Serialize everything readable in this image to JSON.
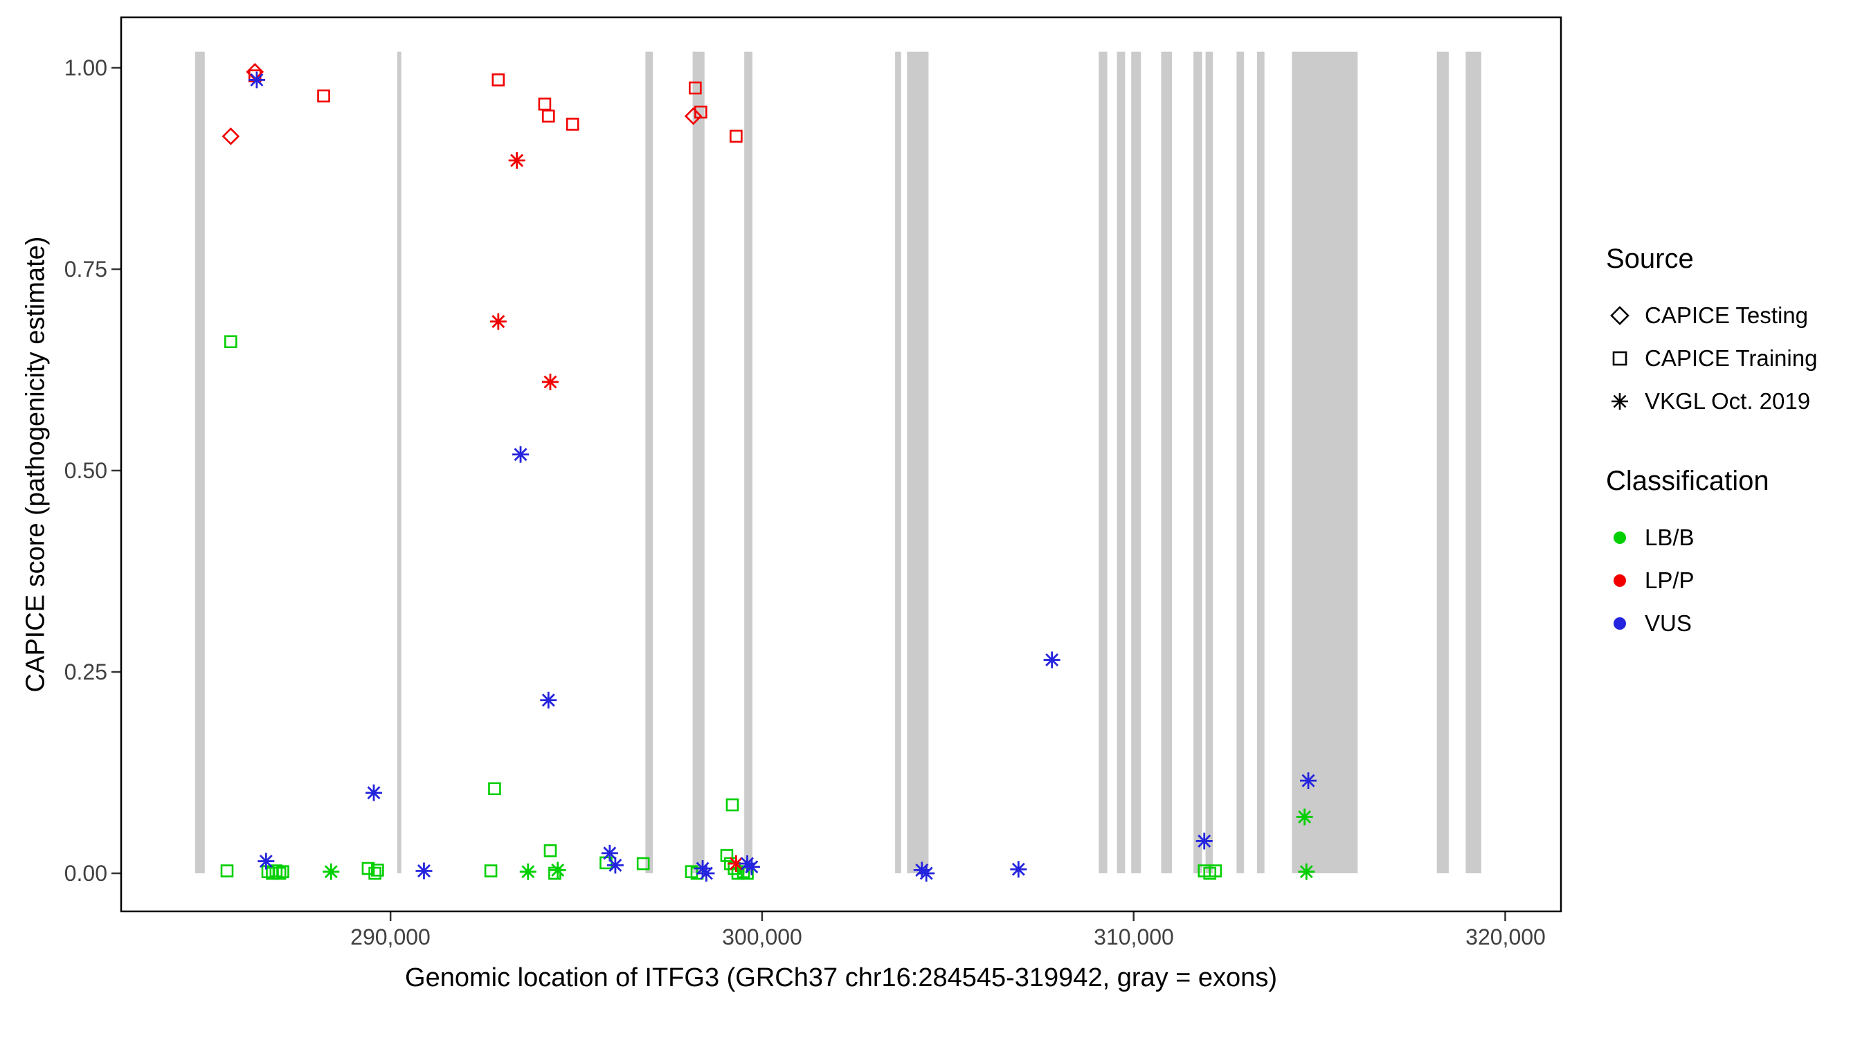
{
  "figure": {
    "background": "#ffffff",
    "panel_border_color": "#000000",
    "tick_color": "#333333",
    "tick_label_color": "#404040"
  },
  "axes": {
    "x": {
      "title": "Genomic location of ITFG3 (GRCh37 chr16:284545-319942, gray = exons)",
      "ticks": [
        {
          "value": 290000,
          "label": "290,000"
        },
        {
          "value": 300000,
          "label": "300,000"
        },
        {
          "value": 310000,
          "label": "310,000"
        },
        {
          "value": 320000,
          "label": "320,000"
        }
      ]
    },
    "y": {
      "title": "CAPICE score (pathogenicity estimate)",
      "ticks": [
        {
          "value": 1.0,
          "label": "1.00"
        },
        {
          "value": 0.75,
          "label": "0.75"
        },
        {
          "value": 0.5,
          "label": "0.50"
        },
        {
          "value": 0.25,
          "label": "0.25"
        },
        {
          "value": 0.0,
          "label": "0.00"
        }
      ]
    }
  },
  "legend": {
    "source": {
      "title": "Source",
      "items": [
        {
          "label": "CAPICE Testing",
          "shape": "diamond"
        },
        {
          "label": "CAPICE Training",
          "shape": "square"
        },
        {
          "label": "VKGL Oct. 2019",
          "shape": "asterisk"
        }
      ]
    },
    "classification": {
      "title": "Classification",
      "items": [
        {
          "label": "LB/B",
          "color": "#00CF00"
        },
        {
          "label": "LP/P",
          "color": "#F20000"
        },
        {
          "label": "VUS",
          "color": "#2424DE"
        }
      ]
    }
  },
  "chart_data": {
    "type": "scatter",
    "title": "",
    "xlabel": "Genomic location of ITFG3 (GRCh37 chr16:284545-319942, gray = exons)",
    "ylabel": "CAPICE score (pathogenicity estimate)",
    "xlim": [
      282750,
      321500
    ],
    "ylim": [
      0,
      1
    ],
    "grid": false,
    "legend_position": "right",
    "exon_color": "#CBCBCB",
    "colors": {
      "LB/B": "#00CF00",
      "LP/P": "#F20000",
      "VUS": "#2424DE"
    },
    "exons": [
      [
        284740,
        285000
      ],
      [
        290180,
        290290
      ],
      [
        296860,
        297060
      ],
      [
        298130,
        298450
      ],
      [
        299520,
        299740
      ],
      [
        303580,
        303740
      ],
      [
        303900,
        304480
      ],
      [
        309060,
        309290
      ],
      [
        309550,
        309770
      ],
      [
        309935,
        310195
      ],
      [
        310740,
        311030
      ],
      [
        311610,
        311840
      ],
      [
        311935,
        312130
      ],
      [
        312770,
        312970
      ],
      [
        313320,
        313520
      ],
      [
        314260,
        316030
      ],
      [
        318160,
        318480
      ],
      [
        318935,
        319355
      ]
    ],
    "series": [
      {
        "name": "CAPICE Testing / LP/P",
        "source": "CAPICE Testing",
        "shape": "diamond",
        "classification": "LP/P",
        "points": [
          [
            285700,
            0.915
          ],
          [
            286350,
            0.995
          ],
          [
            298150,
            0.94
          ]
        ]
      },
      {
        "name": "CAPICE Training / LP/P",
        "source": "CAPICE Training",
        "shape": "square",
        "classification": "LP/P",
        "points": [
          [
            286350,
            0.99
          ],
          [
            288200,
            0.965
          ],
          [
            292900,
            0.985
          ],
          [
            294150,
            0.955
          ],
          [
            294250,
            0.94
          ],
          [
            294900,
            0.93
          ],
          [
            298200,
            0.975
          ],
          [
            298350,
            0.945
          ],
          [
            299300,
            0.915
          ]
        ]
      },
      {
        "name": "CAPICE Training / LB/B",
        "source": "CAPICE Training",
        "shape": "square",
        "classification": "LB/B",
        "points": [
          [
            285700,
            0.66
          ],
          [
            292800,
            0.105
          ],
          [
            299200,
            0.085
          ],
          [
            285600,
            0.003
          ],
          [
            286700,
            0.002
          ],
          [
            286820,
            0.0
          ],
          [
            286920,
            0.003
          ],
          [
            287020,
            0.0
          ],
          [
            287100,
            0.002
          ],
          [
            289400,
            0.006
          ],
          [
            289580,
            0.0
          ],
          [
            289650,
            0.004
          ],
          [
            292700,
            0.003
          ],
          [
            294300,
            0.028
          ],
          [
            294420,
            0.0
          ],
          [
            295800,
            0.013
          ],
          [
            296800,
            0.012
          ],
          [
            298100,
            0.002
          ],
          [
            298250,
            0.0
          ],
          [
            299050,
            0.022
          ],
          [
            299150,
            0.012
          ],
          [
            299250,
            0.006
          ],
          [
            299350,
            0.0
          ],
          [
            299500,
            0.002
          ],
          [
            299600,
            0.0
          ],
          [
            311900,
            0.003
          ],
          [
            312050,
            0.0
          ],
          [
            312200,
            0.003
          ]
        ]
      },
      {
        "name": "VKGL Oct. 2019 / LP/P",
        "source": "VKGL Oct. 2019",
        "shape": "asterisk",
        "classification": "LP/P",
        "points": [
          [
            293400,
            0.885
          ],
          [
            292900,
            0.685
          ],
          [
            294300,
            0.61
          ],
          [
            299300,
            0.012
          ]
        ]
      },
      {
        "name": "VKGL Oct. 2019 / VUS",
        "source": "VKGL Oct. 2019",
        "shape": "asterisk",
        "classification": "VUS",
        "points": [
          [
            286400,
            0.985
          ],
          [
            293500,
            0.52
          ],
          [
            294250,
            0.215
          ],
          [
            289550,
            0.1
          ],
          [
            307800,
            0.265
          ],
          [
            314700,
            0.115
          ],
          [
            311900,
            0.04
          ],
          [
            286650,
            0.015
          ],
          [
            290900,
            0.003
          ],
          [
            295900,
            0.025
          ],
          [
            296050,
            0.01
          ],
          [
            298400,
            0.006
          ],
          [
            298500,
            0.0
          ],
          [
            299600,
            0.012
          ],
          [
            299720,
            0.008
          ],
          [
            304300,
            0.004
          ],
          [
            304420,
            0.0
          ],
          [
            306900,
            0.005
          ]
        ]
      },
      {
        "name": "VKGL Oct. 2019 / LB/B",
        "source": "VKGL Oct. 2019",
        "shape": "asterisk",
        "classification": "LB/B",
        "points": [
          [
            288400,
            0.002
          ],
          [
            293700,
            0.002
          ],
          [
            294500,
            0.004
          ],
          [
            314600,
            0.07
          ],
          [
            314650,
            0.002
          ]
        ]
      }
    ]
  }
}
